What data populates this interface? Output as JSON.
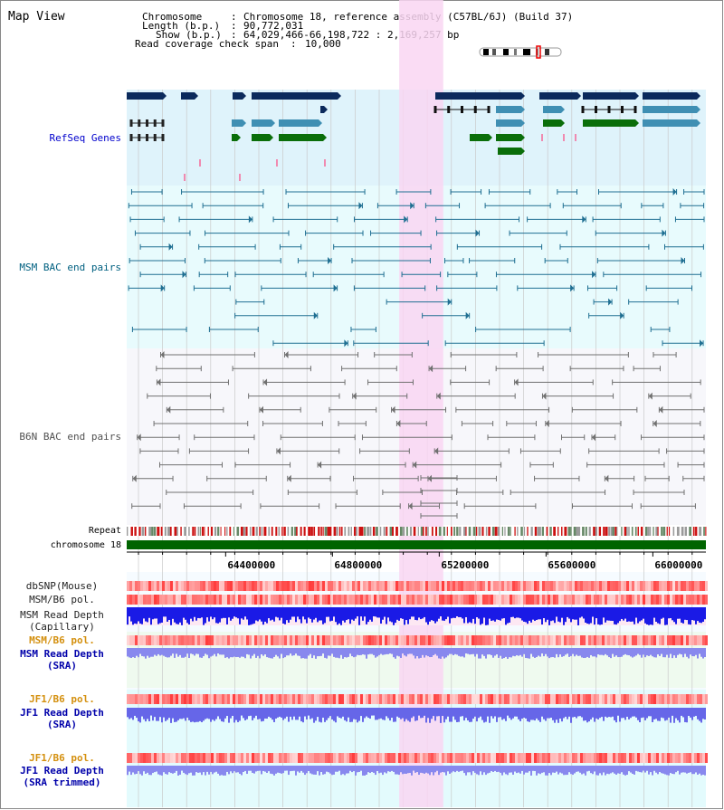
{
  "page": {
    "title": "Map View"
  },
  "header": {
    "lines": [
      {
        "key": "Chromosome",
        "value": "Chromosome 18, reference assembly (C57BL/6J) (Build 37)"
      },
      {
        "key": "Length (b.p.)",
        "value": "90,772,031"
      },
      {
        "key": "Show (b.p.)",
        "value": "64,029,466-66,198,722 : 2,169,257 bp"
      },
      {
        "key": "Read coverage check span",
        "value": "10,000"
      }
    ]
  },
  "tracks": {
    "refseq": "RefSeq Genes",
    "msm_bac": "MSM BAC end pairs",
    "b6n_bac": "B6N BAC end pairs",
    "repeat": "Repeat",
    "chromosome": "chromosome 18",
    "dbsnp": "dbSNP(Mouse)",
    "msm_b6_pol": "MSM/B6 pol.",
    "msm_read_depth_cap_1": "MSM Read Depth",
    "msm_read_depth_cap_2": "(Capillary)",
    "msm_b6_pol_2": "MSM/B6 pol.",
    "msm_read_depth_sra_1": "MSM Read Depth",
    "msm_read_depth_sra_2": "(SRA)",
    "jf1_b6_pol": "JF1/B6 pol.",
    "jf1_read_depth_sra_1": "JF1 Read Depth",
    "jf1_read_depth_sra_2": "(SRA)",
    "jf1_b6_pol_2": "JF1/B6 pol.",
    "jf1_read_depth_trim_1": "JF1 Read Depth",
    "jf1_read_depth_trim_2": "(SRA trimmed)"
  },
  "axis": {
    "ticks": [
      "64400000",
      "64800000",
      "65200000",
      "65600000",
      "66000000"
    ],
    "start_bp": 64029466,
    "end_bp": 66198722
  },
  "highlight": {
    "start_bp": 65050000,
    "end_bp": 65215000
  },
  "colors": {
    "refseq_bg": "#dff3fb",
    "msm_bg": "#e8fbfd",
    "b6n_bg": "#f7f7fb",
    "highlight": "#f9d6f2",
    "chromosome_bar": "#006400",
    "refseq_dark": "#0b2a5c",
    "refseq_mid": "#3f8fb3",
    "refseq_green": "#0a6e0a",
    "msm_line": "#1f6f92",
    "b6n_line": "#707070",
    "pol_red": "#ee2222",
    "depth_blue": "#1a1ae6",
    "depth_light": "#8888ee",
    "label_gold": "#d4900f",
    "label_blue": "#0000aa",
    "label_teal": "#006080",
    "label_grey": "#505050"
  }
}
